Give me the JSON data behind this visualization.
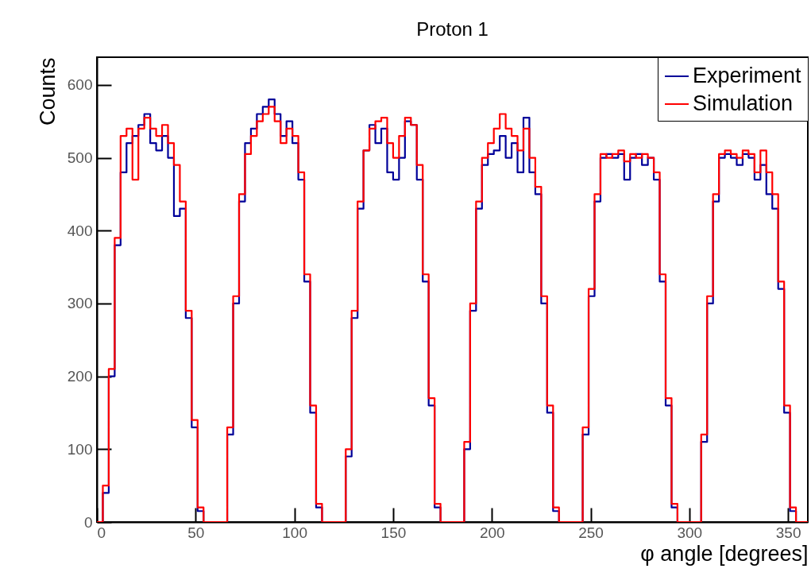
{
  "chart_data": {
    "type": "histogram",
    "title": "Proton 1",
    "xlabel": "φ angle [degrees]",
    "ylabel": "Counts",
    "bins": [
      0,
      3,
      6,
      9,
      12,
      15,
      18,
      21,
      24,
      27,
      30,
      33,
      36,
      39,
      42,
      45,
      48,
      51,
      54,
      57,
      60,
      63,
      66,
      69,
      72,
      75,
      78,
      81,
      84,
      87,
      90,
      93,
      96,
      99,
      102,
      105,
      108,
      111,
      114,
      117,
      120,
      123,
      126,
      129,
      132,
      135,
      138,
      141,
      144,
      147,
      150,
      153,
      156,
      159,
      162,
      165,
      168,
      171,
      174,
      177,
      180,
      183,
      186,
      189,
      192,
      195,
      198,
      201,
      204,
      207,
      210,
      213,
      216,
      219,
      222,
      225,
      228,
      231,
      234,
      237,
      240,
      243,
      246,
      249,
      252,
      255,
      258,
      261,
      264,
      267,
      270,
      273,
      276,
      279,
      282,
      285,
      288,
      291,
      294,
      297,
      300,
      303,
      306,
      309,
      312,
      315,
      318,
      321,
      324,
      327,
      330,
      333,
      336,
      339,
      342,
      345,
      348,
      351,
      354,
      357,
      360
    ],
    "series": [
      {
        "name": "Experiment",
        "color": "#000099",
        "values": [
          0,
          40,
          200,
          380,
          480,
          520,
          530,
          545,
          560,
          520,
          510,
          530,
          500,
          420,
          430,
          280,
          130,
          15,
          0,
          0,
          0,
          0,
          120,
          300,
          440,
          520,
          540,
          560,
          570,
          580,
          560,
          530,
          550,
          520,
          470,
          330,
          150,
          20,
          0,
          0,
          0,
          0,
          90,
          280,
          430,
          510,
          545,
          520,
          540,
          480,
          470,
          500,
          550,
          545,
          470,
          330,
          160,
          20,
          0,
          0,
          0,
          0,
          100,
          290,
          430,
          490,
          505,
          510,
          530,
          500,
          520,
          480,
          555,
          480,
          450,
          300,
          150,
          15,
          0,
          0,
          0,
          0,
          120,
          310,
          440,
          500,
          505,
          500,
          505,
          470,
          500,
          505,
          490,
          500,
          470,
          330,
          160,
          20,
          0,
          0,
          0,
          0,
          110,
          300,
          440,
          500,
          505,
          500,
          490,
          505,
          500,
          470,
          490,
          450,
          430,
          320,
          150,
          15,
          0,
          0
        ]
      },
      {
        "name": "Simulation",
        "color": "#ff0000",
        "values": [
          0,
          50,
          210,
          390,
          530,
          540,
          470,
          540,
          555,
          540,
          530,
          545,
          520,
          490,
          440,
          290,
          140,
          20,
          0,
          0,
          0,
          0,
          130,
          310,
          450,
          505,
          530,
          550,
          560,
          570,
          550,
          520,
          540,
          530,
          480,
          340,
          160,
          25,
          0,
          0,
          0,
          0,
          100,
          290,
          440,
          510,
          540,
          550,
          555,
          520,
          500,
          530,
          555,
          545,
          490,
          340,
          170,
          25,
          0,
          0,
          0,
          0,
          110,
          300,
          440,
          500,
          520,
          540,
          560,
          540,
          530,
          510,
          540,
          500,
          460,
          310,
          160,
          20,
          0,
          0,
          0,
          0,
          130,
          320,
          450,
          505,
          500,
          505,
          510,
          495,
          505,
          500,
          505,
          500,
          480,
          340,
          170,
          25,
          0,
          0,
          0,
          0,
          120,
          310,
          450,
          505,
          510,
          505,
          500,
          510,
          505,
          480,
          510,
          480,
          450,
          330,
          160,
          20,
          0,
          0
        ]
      }
    ],
    "xlim": [
      0,
      360
    ],
    "ylim": [
      0,
      638
    ],
    "xticks": [
      0,
      50,
      100,
      150,
      200,
      250,
      300,
      350
    ],
    "yticks": [
      0,
      100,
      200,
      300,
      400,
      500,
      600
    ],
    "legend": "top right"
  }
}
